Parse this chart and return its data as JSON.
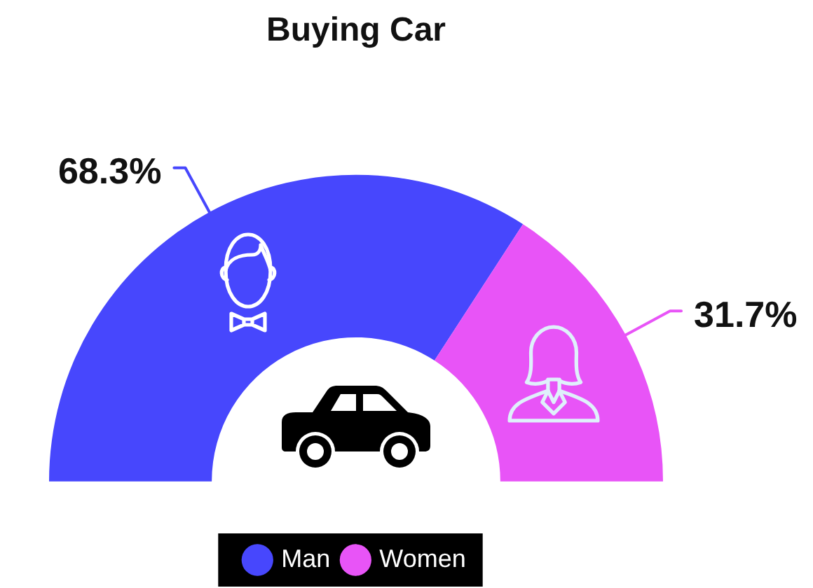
{
  "chart_data": {
    "type": "donut",
    "title": "Buying Car",
    "categories": [
      "Man",
      "Women"
    ],
    "values": [
      68.3,
      31.7
    ],
    "colors": [
      "#4747fd",
      "#e854f7"
    ],
    "value_labels": [
      "68.3%",
      "31.7%"
    ],
    "legend": "bottom"
  }
}
